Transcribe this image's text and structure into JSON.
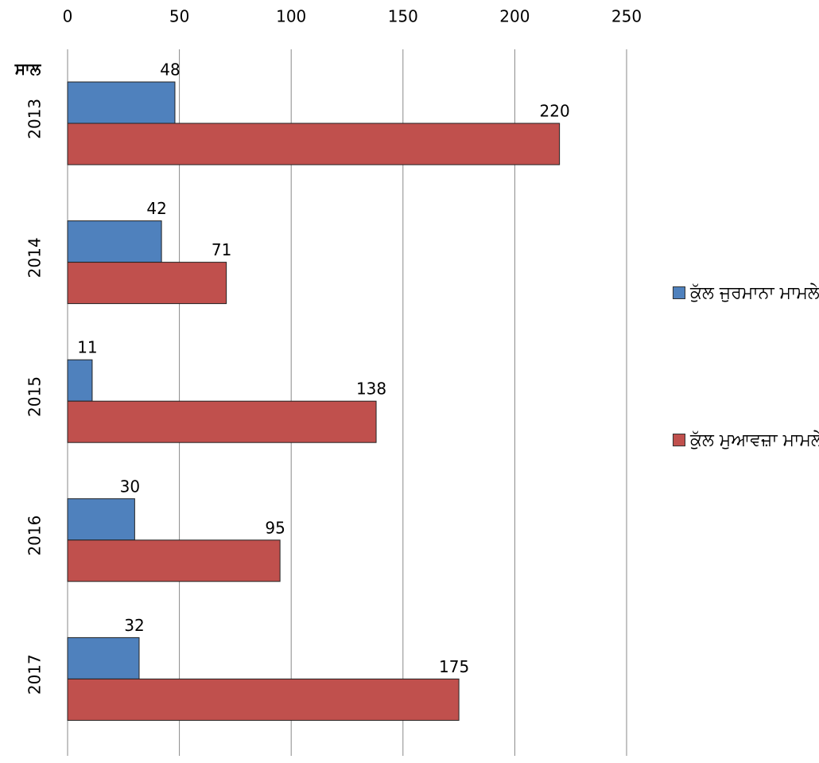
{
  "chart_data": {
    "type": "barh",
    "y_label": "ਸਾਲ",
    "categories": [
      "2013",
      "2014",
      "2015",
      "2016",
      "2017"
    ],
    "series": [
      {
        "name": "ਕੁੱਲ ਜੁਰਮਾਨਾ ਮਾਮਲੇ",
        "color": "#4f81bd",
        "values": [
          48,
          42,
          11,
          30,
          32
        ]
      },
      {
        "name": "ਕੁੱਲ ਮੁਆਵਜ਼ਾ ਮਾਮਲੇ",
        "color": "#c0504d",
        "values": [
          220,
          71,
          138,
          95,
          175
        ]
      }
    ],
    "xlim": [
      0,
      250
    ],
    "xticks": [
      0,
      50,
      100,
      150,
      200,
      250
    ],
    "grid": true,
    "legend": "right"
  }
}
